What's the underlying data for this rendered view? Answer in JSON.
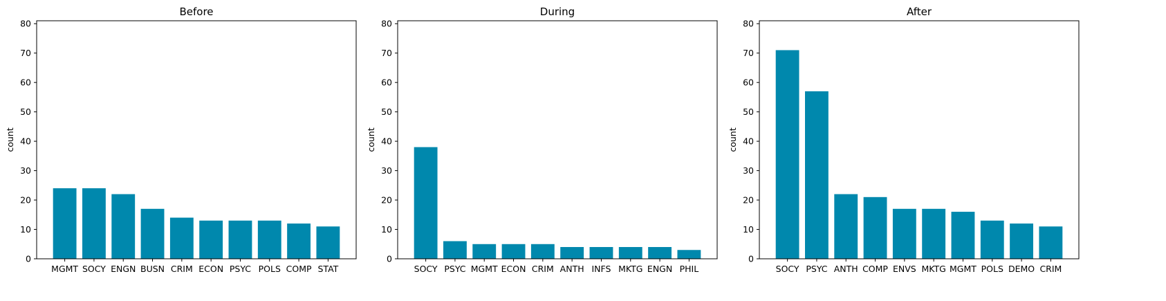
{
  "chart_data": [
    {
      "type": "bar",
      "title": "Before",
      "xlabel": "",
      "ylabel": "count",
      "ylim": [
        0,
        81
      ],
      "yticks": [
        0,
        10,
        20,
        30,
        40,
        50,
        60,
        70,
        80
      ],
      "grid": false,
      "categories": [
        "MGMT",
        "SOCY",
        "ENGN",
        "BUSN",
        "CRIM",
        "ECON",
        "PSYC",
        "POLS",
        "COMP",
        "STAT"
      ],
      "values": [
        24,
        24,
        22,
        17,
        14,
        13,
        13,
        13,
        12,
        11
      ],
      "color": "#0088ad"
    },
    {
      "type": "bar",
      "title": "During",
      "xlabel": "",
      "ylabel": "count",
      "ylim": [
        0,
        81
      ],
      "yticks": [
        0,
        10,
        20,
        30,
        40,
        50,
        60,
        70,
        80
      ],
      "grid": false,
      "categories": [
        "SOCY",
        "PSYC",
        "MGMT",
        "ECON",
        "CRIM",
        "ANTH",
        "INFS",
        "MKTG",
        "ENGN",
        "PHIL"
      ],
      "values": [
        38,
        6,
        5,
        5,
        5,
        4,
        4,
        4,
        4,
        3
      ],
      "color": "#0088ad"
    },
    {
      "type": "bar",
      "title": "After",
      "xlabel": "",
      "ylabel": "count",
      "ylim": [
        0,
        81
      ],
      "yticks": [
        0,
        10,
        20,
        30,
        40,
        50,
        60,
        70,
        80
      ],
      "grid": false,
      "categories": [
        "SOCY",
        "PSYC",
        "ANTH",
        "COMP",
        "ENVS",
        "MKTG",
        "MGMT",
        "POLS",
        "DEMO",
        "CRIM"
      ],
      "values": [
        71,
        57,
        22,
        21,
        17,
        17,
        16,
        13,
        12,
        11
      ],
      "color": "#0088ad"
    }
  ]
}
